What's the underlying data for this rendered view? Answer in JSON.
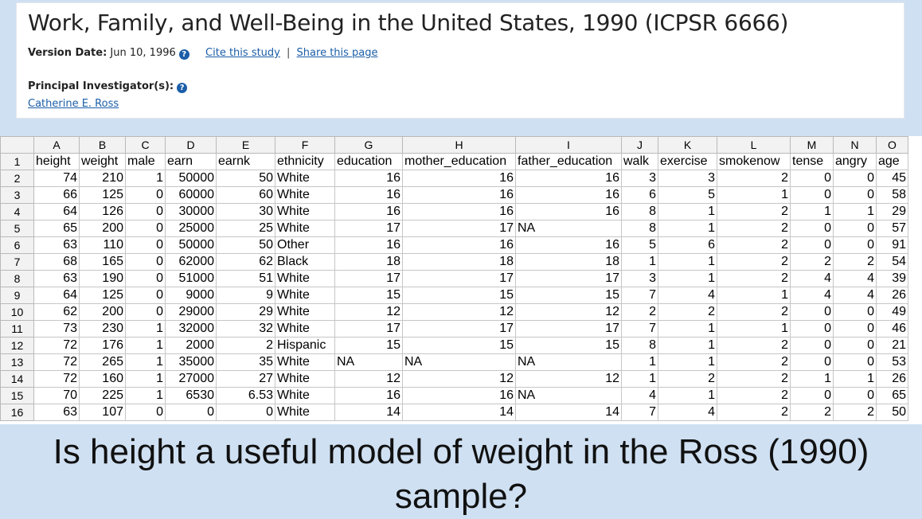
{
  "study": {
    "title": "Work, Family, and Well-Being in the United States, 1990 (ICPSR 6666)",
    "version_date_label": "Version Date:",
    "version_date": "Jun 10, 1996",
    "cite_link": "Cite this study",
    "separator": "|",
    "share_link": "Share this page",
    "pi_label": "Principal Investigator(s):",
    "pi_name": "Catherine E. Ross",
    "info_icon": "?"
  },
  "sheet": {
    "column_letters": [
      "A",
      "B",
      "C",
      "D",
      "E",
      "F",
      "G",
      "H",
      "I",
      "J",
      "K",
      "L",
      "M",
      "N",
      "O"
    ],
    "column_alignments": [
      "num",
      "num",
      "num",
      "num",
      "num",
      "txt",
      "num",
      "num",
      "num",
      "num",
      "num",
      "num",
      "num",
      "num",
      "num"
    ],
    "row_numbers": [
      "1",
      "2",
      "3",
      "4",
      "5",
      "6",
      "7",
      "8",
      "9",
      "10",
      "11",
      "12",
      "13",
      "14",
      "15",
      "16"
    ],
    "headers": [
      "height",
      "weight",
      "male",
      "earn",
      "earnk",
      "ethnicity",
      "education",
      "mother_education",
      "father_education",
      "walk",
      "exercise",
      "smokenow",
      "tense",
      "angry",
      "age"
    ],
    "rows": [
      [
        "74",
        "210",
        "1",
        "50000",
        "50",
        "White",
        "16",
        "16",
        "16",
        "3",
        "3",
        "2",
        "0",
        "0",
        "45"
      ],
      [
        "66",
        "125",
        "0",
        "60000",
        "60",
        "White",
        "16",
        "16",
        "16",
        "6",
        "5",
        "1",
        "0",
        "0",
        "58"
      ],
      [
        "64",
        "126",
        "0",
        "30000",
        "30",
        "White",
        "16",
        "16",
        "16",
        "8",
        "1",
        "2",
        "1",
        "1",
        "29"
      ],
      [
        "65",
        "200",
        "0",
        "25000",
        "25",
        "White",
        "17",
        "17",
        "NA",
        "8",
        "1",
        "2",
        "0",
        "0",
        "57"
      ],
      [
        "63",
        "110",
        "0",
        "50000",
        "50",
        "Other",
        "16",
        "16",
        "16",
        "5",
        "6",
        "2",
        "0",
        "0",
        "91"
      ],
      [
        "68",
        "165",
        "0",
        "62000",
        "62",
        "Black",
        "18",
        "18",
        "18",
        "1",
        "1",
        "2",
        "2",
        "2",
        "54"
      ],
      [
        "63",
        "190",
        "0",
        "51000",
        "51",
        "White",
        "17",
        "17",
        "17",
        "3",
        "1",
        "2",
        "4",
        "4",
        "39"
      ],
      [
        "64",
        "125",
        "0",
        "9000",
        "9",
        "White",
        "15",
        "15",
        "15",
        "7",
        "4",
        "1",
        "4",
        "4",
        "26"
      ],
      [
        "62",
        "200",
        "0",
        "29000",
        "29",
        "White",
        "12",
        "12",
        "12",
        "2",
        "2",
        "2",
        "0",
        "0",
        "49"
      ],
      [
        "73",
        "230",
        "1",
        "32000",
        "32",
        "White",
        "17",
        "17",
        "17",
        "7",
        "1",
        "1",
        "0",
        "0",
        "46"
      ],
      [
        "72",
        "176",
        "1",
        "2000",
        "2",
        "Hispanic",
        "15",
        "15",
        "15",
        "8",
        "1",
        "2",
        "0",
        "0",
        "21"
      ],
      [
        "72",
        "265",
        "1",
        "35000",
        "35",
        "White",
        "NA",
        "NA",
        "NA",
        "1",
        "1",
        "2",
        "0",
        "0",
        "53"
      ],
      [
        "72",
        "160",
        "1",
        "27000",
        "27",
        "White",
        "12",
        "12",
        "12",
        "1",
        "2",
        "2",
        "1",
        "1",
        "26"
      ],
      [
        "70",
        "225",
        "1",
        "6530",
        "6.53",
        "White",
        "16",
        "16",
        "NA",
        "4",
        "1",
        "2",
        "0",
        "0",
        "65"
      ],
      [
        "63",
        "107",
        "0",
        "0",
        "0",
        "White",
        "14",
        "14",
        "14",
        "7",
        "4",
        "2",
        "2",
        "2",
        "50"
      ]
    ]
  },
  "question": "Is height a useful model of weight in the Ross (1990) sample?"
}
